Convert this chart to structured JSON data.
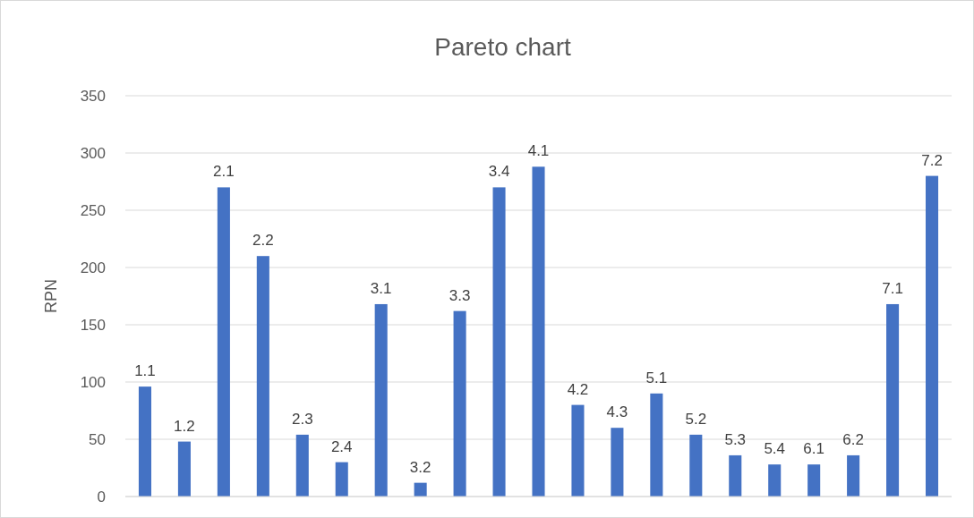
{
  "chart_data": {
    "type": "bar",
    "title": "Pareto chart",
    "ylabel": "RPN",
    "categories": [
      "1.1",
      "1.2",
      "2.1",
      "2.2",
      "2.3",
      "2.4",
      "3.1",
      "3.2",
      "3.3",
      "3.4",
      "4.1",
      "4.2",
      "4.3",
      "5.1",
      "5.2",
      "5.3",
      "5.4",
      "6.1",
      "6.2",
      "7.1",
      "7.2"
    ],
    "values": [
      96,
      48,
      270,
      210,
      54,
      30,
      168,
      12,
      162,
      270,
      288,
      80,
      60,
      90,
      54,
      36,
      28,
      28,
      36,
      168,
      280
    ],
    "color": "#4472c4",
    "ylim": [
      0,
      350
    ],
    "yticks": [
      0,
      50,
      100,
      150,
      200,
      250,
      300,
      350
    ],
    "grid": "y"
  }
}
